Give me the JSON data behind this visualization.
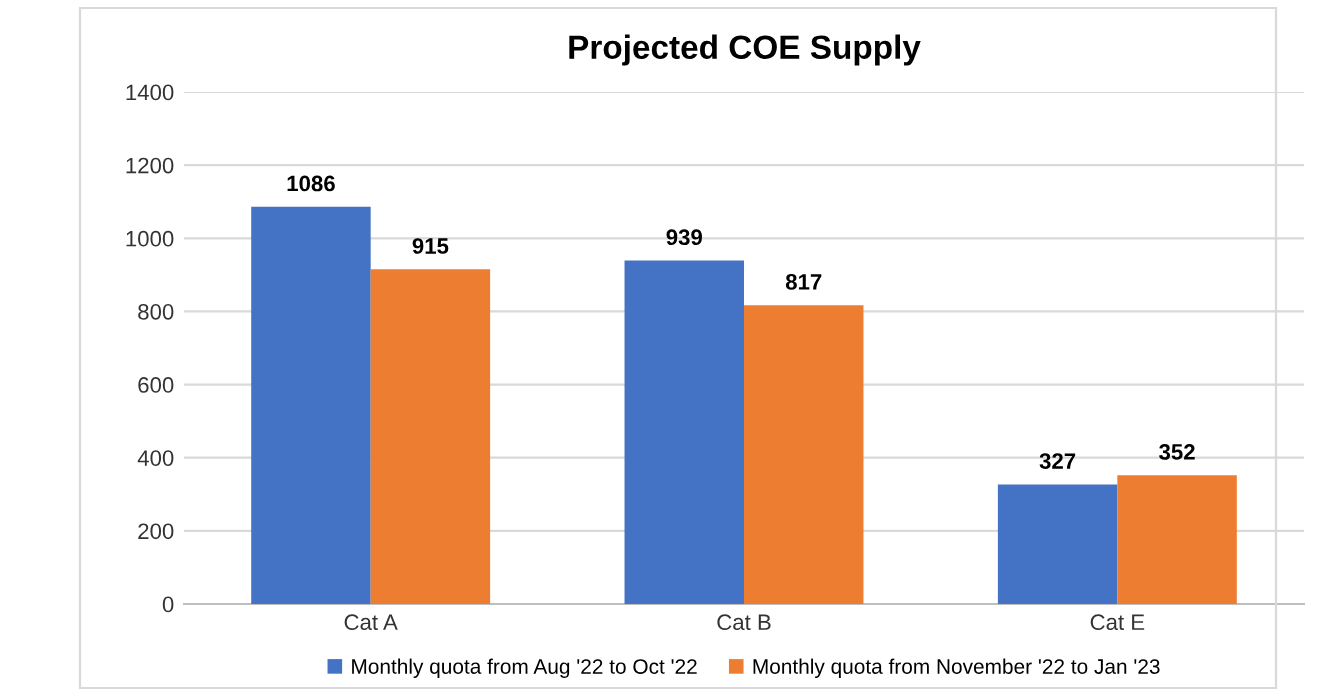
{
  "chart_data": {
    "type": "bar",
    "title": "Projected COE Supply",
    "categories": [
      "Cat A",
      "Cat B",
      "Cat E"
    ],
    "series": [
      {
        "name": "Monthly quota from Aug '22 to Oct '22",
        "color": "#4472c4",
        "values": [
          1086,
          939,
          327
        ]
      },
      {
        "name": "Monthly quota from November '22 to Jan '23",
        "color": "#ed7d31",
        "values": [
          915,
          817,
          352
        ]
      }
    ],
    "ylim": [
      0,
      1400
    ],
    "yticks": [
      0,
      200,
      400,
      600,
      800,
      1000,
      1200,
      1400
    ],
    "grid": "y",
    "legend": "bottom",
    "data_labels": true
  }
}
